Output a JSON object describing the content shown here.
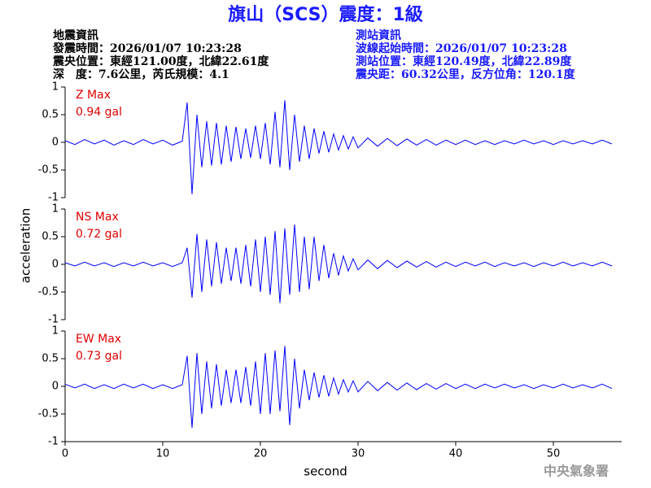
{
  "title": "旗山（SCS）震度：1級",
  "info_left": [
    "地震資訊",
    "發震時間：2026/01/07 10:23:28",
    "震央位置：東經121.00度，北緯22.61度",
    "深　度：7.6公里，芮氏規模：4.1"
  ],
  "info_right": [
    "測站資訊",
    "波線起始時間：2026/01/07 10:23:28",
    "測站位置：東經120.49度，北緯22.89度",
    "震央距：60.32公里，反方位角：120.1度"
  ],
  "ylabel": "acceleration",
  "xlabel": "second",
  "footer": "中央氣象署",
  "chart_data": [
    {
      "type": "line",
      "label": "Z Max",
      "peak": "0.94 gal",
      "color": "#0000ff",
      "xlim": [
        0,
        57
      ],
      "ylim": [
        -1,
        1
      ],
      "yticks": [
        1,
        0.5,
        0,
        -0.5,
        -1
      ],
      "x": [
        0,
        1,
        2,
        3,
        4,
        5,
        6,
        7,
        8,
        9,
        10,
        11,
        12,
        12.5,
        13,
        13.5,
        14,
        14.5,
        15,
        15.5,
        16,
        16.5,
        17,
        17.5,
        18,
        18.5,
        19,
        19.5,
        20,
        20.5,
        21,
        21.5,
        22,
        22.5,
        23,
        23.5,
        24,
        24.5,
        25,
        25.5,
        26,
        26.5,
        27,
        27.5,
        28,
        28.5,
        29,
        29.5,
        30,
        31,
        32,
        33,
        34,
        35,
        36,
        37,
        38,
        39,
        40,
        41,
        42,
        43,
        44,
        45,
        46,
        47,
        48,
        49,
        50,
        51,
        52,
        53,
        54,
        55,
        56
      ],
      "values": [
        0.03,
        -0.04,
        0.05,
        -0.03,
        0.04,
        -0.05,
        0.03,
        -0.04,
        0.05,
        -0.03,
        0.04,
        -0.05,
        0.02,
        0.72,
        -0.94,
        0.5,
        -0.45,
        0.38,
        -0.42,
        0.35,
        -0.4,
        0.3,
        -0.35,
        0.28,
        -0.3,
        0.25,
        -0.28,
        0.3,
        -0.3,
        0.35,
        -0.4,
        0.55,
        -0.45,
        0.76,
        -0.5,
        0.5,
        -0.35,
        0.3,
        -0.3,
        0.25,
        -0.2,
        0.2,
        -0.18,
        0.15,
        -0.14,
        0.12,
        -0.12,
        0.1,
        -0.1,
        0.08,
        -0.07,
        0.07,
        -0.06,
        0.06,
        -0.05,
        0.05,
        -0.05,
        0.04,
        -0.04,
        0.04,
        -0.04,
        0.03,
        -0.04,
        0.03,
        -0.03,
        0.04,
        -0.03,
        0.03,
        -0.04,
        0.03,
        -0.03,
        0.03,
        -0.03,
        0.04,
        -0.03
      ]
    },
    {
      "type": "line",
      "label": "NS Max",
      "peak": "0.72 gal",
      "color": "#0000ff",
      "xlim": [
        0,
        57
      ],
      "ylim": [
        -1,
        1
      ],
      "yticks": [
        1,
        0.5,
        0,
        -0.5,
        -1
      ],
      "x": [
        0,
        1,
        2,
        3,
        4,
        5,
        6,
        7,
        8,
        9,
        10,
        11,
        12,
        12.5,
        13,
        13.5,
        14,
        14.5,
        15,
        15.5,
        16,
        16.5,
        17,
        17.5,
        18,
        18.5,
        19,
        19.5,
        20,
        20.5,
        21,
        21.5,
        22,
        22.5,
        23,
        23.5,
        24,
        24.5,
        25,
        25.5,
        26,
        26.5,
        27,
        27.5,
        28,
        28.5,
        29,
        29.5,
        30,
        31,
        32,
        33,
        34,
        35,
        36,
        37,
        38,
        39,
        40,
        41,
        42,
        43,
        44,
        45,
        46,
        47,
        48,
        49,
        50,
        51,
        52,
        53,
        54,
        55,
        56
      ],
      "values": [
        0.03,
        -0.03,
        0.04,
        -0.03,
        0.03,
        -0.04,
        0.03,
        -0.03,
        0.04,
        -0.03,
        0.03,
        -0.04,
        0.03,
        0.3,
        -0.6,
        0.55,
        -0.5,
        0.45,
        -0.4,
        0.4,
        -0.35,
        0.3,
        -0.3,
        0.3,
        -0.35,
        0.35,
        -0.4,
        0.45,
        -0.5,
        0.5,
        -0.55,
        0.6,
        -0.7,
        0.65,
        -0.55,
        0.72,
        -0.5,
        0.5,
        -0.45,
        0.5,
        -0.3,
        0.35,
        -0.25,
        0.2,
        -0.2,
        0.15,
        -0.12,
        0.1,
        -0.1,
        0.08,
        -0.08,
        0.07,
        -0.06,
        0.06,
        -0.05,
        0.05,
        -0.05,
        0.04,
        -0.04,
        0.04,
        -0.03,
        0.04,
        -0.04,
        0.03,
        -0.03,
        0.03,
        -0.04,
        0.03,
        -0.03,
        0.04,
        -0.03,
        0.03,
        -0.03,
        0.04,
        -0.03
      ]
    },
    {
      "type": "line",
      "label": "EW Max",
      "peak": "0.73 gal",
      "color": "#0000ff",
      "xlim": [
        0,
        57
      ],
      "ylim": [
        -1,
        1
      ],
      "yticks": [
        1,
        0.5,
        0,
        -0.5,
        -1
      ],
      "xticks": [
        0,
        10,
        20,
        30,
        40,
        50
      ],
      "x": [
        0,
        1,
        2,
        3,
        4,
        5,
        6,
        7,
        8,
        9,
        10,
        11,
        12,
        12.5,
        13,
        13.5,
        14,
        14.5,
        15,
        15.5,
        16,
        16.5,
        17,
        17.5,
        18,
        18.5,
        19,
        19.5,
        20,
        20.5,
        21,
        21.5,
        22,
        22.5,
        23,
        23.5,
        24,
        24.5,
        25,
        25.5,
        26,
        26.5,
        27,
        27.5,
        28,
        28.5,
        29,
        29.5,
        30,
        31,
        32,
        33,
        34,
        35,
        36,
        37,
        38,
        39,
        40,
        41,
        42,
        43,
        44,
        45,
        46,
        47,
        48,
        49,
        50,
        51,
        52,
        53,
        54,
        55,
        56
      ],
      "values": [
        0.04,
        -0.03,
        0.04,
        -0.04,
        0.03,
        -0.04,
        0.04,
        -0.03,
        0.04,
        -0.04,
        0.03,
        -0.04,
        0.03,
        0.55,
        -0.75,
        0.6,
        -0.5,
        0.45,
        -0.4,
        0.4,
        -0.35,
        0.3,
        -0.3,
        0.3,
        -0.3,
        0.35,
        -0.35,
        0.45,
        -0.5,
        0.6,
        -0.5,
        0.65,
        -0.45,
        0.73,
        -0.7,
        0.5,
        -0.4,
        0.3,
        -0.25,
        0.25,
        -0.2,
        0.2,
        -0.18,
        0.15,
        -0.14,
        0.12,
        -0.1,
        0.1,
        -0.1,
        0.09,
        -0.08,
        0.07,
        -0.07,
        0.06,
        -0.06,
        0.05,
        -0.05,
        0.05,
        -0.04,
        0.04,
        -0.04,
        0.04,
        -0.03,
        0.04,
        -0.03,
        0.03,
        -0.04,
        0.03,
        -0.03,
        0.04,
        -0.03,
        0.03,
        -0.03,
        0.04,
        -0.04
      ]
    }
  ]
}
